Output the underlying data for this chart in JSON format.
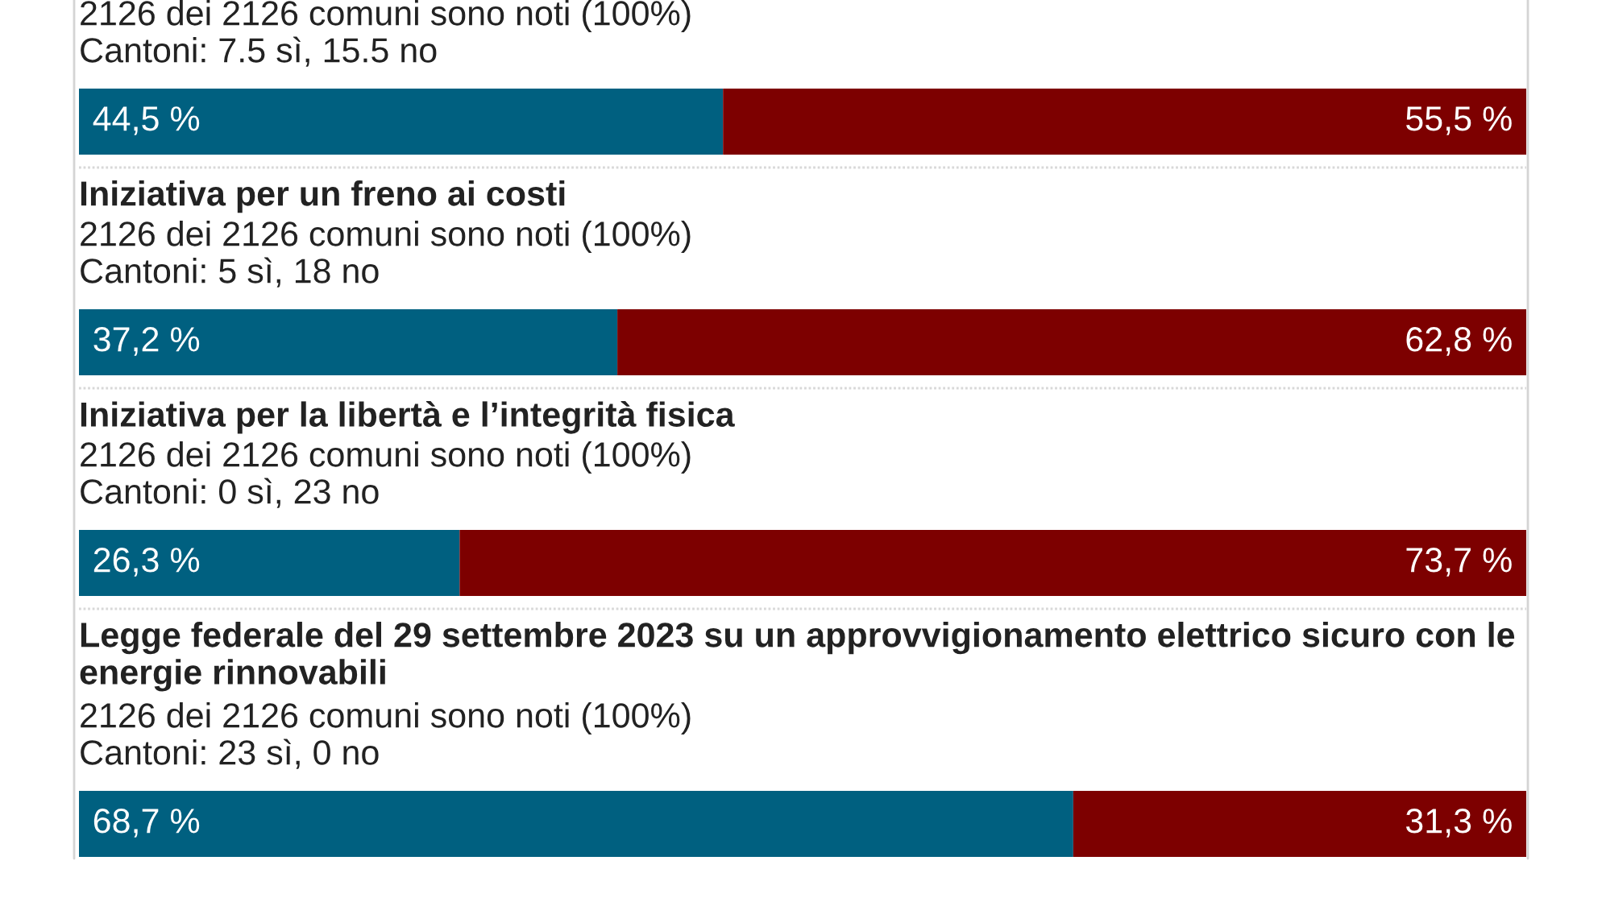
{
  "chart_data": [
    {
      "type": "bar",
      "orientation": "horizontal",
      "stacked": true,
      "subtitle": "2126 dei 2126 comuni sono noti (100%)\nCantoni: 7.5 sì, 15.5 no",
      "categories": [
        null
      ],
      "series": [
        {
          "color": "#006080",
          "values": [
            44.5
          ],
          "value_labels": [
            "44,5 %"
          ]
        },
        {
          "color": "#7d0000",
          "values": [
            55.5
          ],
          "value_labels": [
            "55,5 %"
          ]
        }
      ],
      "xlim": [
        0,
        100
      ],
      "tick_labels": false
    },
    {
      "type": "bar",
      "orientation": "horizontal",
      "stacked": true,
      "title": "Iniziativa per un freno ai costi",
      "subtitle": "2126 dei 2126 comuni sono noti (100%)\nCantoni: 5 sì, 18 no",
      "categories": [
        null
      ],
      "series": [
        {
          "color": "#006080",
          "values": [
            37.2
          ],
          "value_labels": [
            "37,2 %"
          ]
        },
        {
          "color": "#7d0000",
          "values": [
            62.8
          ],
          "value_labels": [
            "62,8 %"
          ]
        }
      ],
      "xlim": [
        0,
        100
      ],
      "tick_labels": false
    },
    {
      "type": "bar",
      "orientation": "horizontal",
      "stacked": true,
      "title": "Iniziativa per la libertà e l’integrità fisica",
      "subtitle": "2126 dei 2126 comuni sono noti (100%)\nCantoni: 0 sì, 23 no",
      "categories": [
        null
      ],
      "series": [
        {
          "color": "#006080",
          "values": [
            26.3
          ],
          "value_labels": [
            "26,3 %"
          ]
        },
        {
          "color": "#7d0000",
          "values": [
            73.7
          ],
          "value_labels": [
            "73,7 %"
          ]
        }
      ],
      "xlim": [
        0,
        100
      ],
      "tick_labels": false
    },
    {
      "type": "bar",
      "orientation": "horizontal",
      "stacked": true,
      "title": "Legge federale del 29 settembre 2023 su un approvvigionamento elettrico sicuro con le energie rinnovabili",
      "subtitle": "2126 dei 2126 comuni sono noti (100%)\nCantoni: 23 sì, 0 no",
      "categories": [
        null
      ],
      "series": [
        {
          "color": "#006080",
          "values": [
            68.7
          ],
          "value_labels": [
            "68,7 %"
          ]
        },
        {
          "color": "#7d0000",
          "values": [
            31.3
          ],
          "value_labels": [
            "31,3 %"
          ]
        }
      ],
      "xlim": [
        0,
        100
      ],
      "tick_labels": false
    }
  ]
}
